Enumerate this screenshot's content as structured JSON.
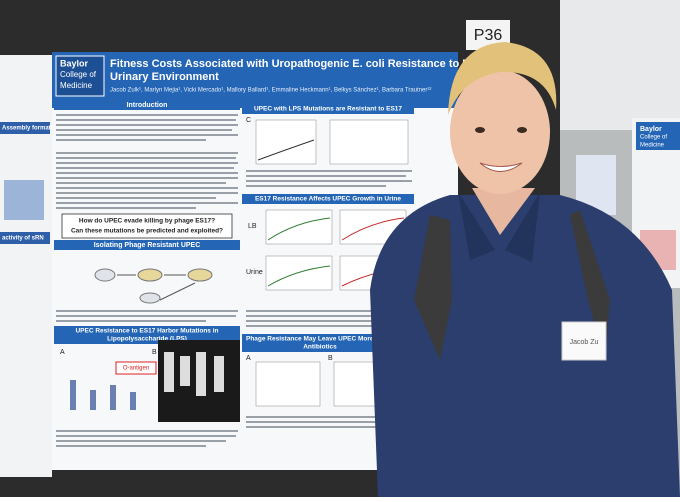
{
  "sign": "P36",
  "poster": {
    "logo": [
      "Baylor",
      "College of",
      "Medicine"
    ],
    "title_line1": "Fitness Costs Associated with Uropathogenic E. coli Resistance to Bac",
    "title_line2": "Urinary Environment",
    "authors": "Jacob Zulk¹, Marlyn Mejia¹, Vicki Mercado¹, Mallory Ballard¹, Emmaline Heckmann¹, Belkys Sánchez¹, Barbara Trautner¹²",
    "sections": {
      "introduction": "Introduction",
      "question1": "How do UPEC evade killing by phage ES17?",
      "question2": "Can these mutations be predicted and exploited?",
      "isolating": "Isolating Phage Resistant UPEC",
      "lps_heading": "UPEC Resistance to ES17 Harbor Mutations in",
      "lps_heading2": "Lipopolysaccharide (LPS)",
      "o_antigen": "O-antigen",
      "resistant": "UPEC with LPS Mutations are Resistant to ES17",
      "urine": "ES17 Resistance Affects UPEC Growth in Urine",
      "antibiotics": "Phage Resistance May Leave UPEC More Su",
      "antibiotics2": "Antibiotics"
    },
    "panel_labels": [
      "A",
      "B",
      "C",
      "A",
      "B",
      "LB",
      "Urine"
    ]
  },
  "left_poster": {
    "heading": "Assembly formation",
    "heading2": "activity of sRN"
  },
  "right_poster": {
    "logo": [
      "Baylor",
      "College of",
      "Medicine"
    ]
  },
  "name_tag": "Jacob Zu"
}
